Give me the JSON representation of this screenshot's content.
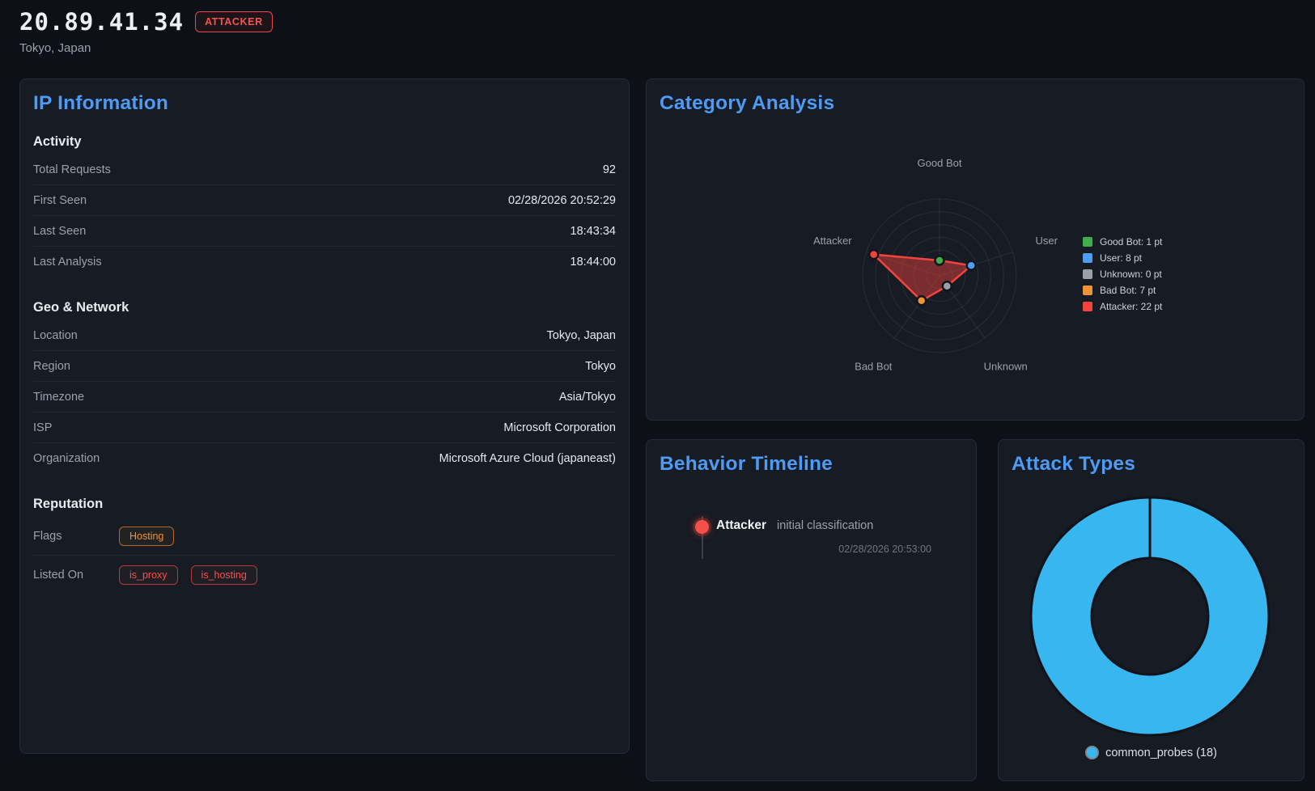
{
  "header": {
    "ip": "20.89.41.34",
    "badge": "ATTACKER",
    "location": "Tokyo, Japan"
  },
  "theme": {
    "accent_blue": "#4d9bf5",
    "attacker_red": "#f4443e",
    "panel_background": "#171b23"
  },
  "ip_information": {
    "title": "IP Information",
    "sections": [
      {
        "heading": "Activity",
        "rows": [
          {
            "label": "Total Requests",
            "value": "92"
          },
          {
            "label": "First Seen",
            "value": "02/28/2026 20:52:29"
          },
          {
            "label": "Last Seen",
            "value": "18:43:34"
          },
          {
            "label": "Last Analysis",
            "value": "18:44:00"
          }
        ]
      },
      {
        "heading": "Geo & Network",
        "rows": [
          {
            "label": "Location",
            "value": "Tokyo, Japan"
          },
          {
            "label": "Region",
            "value": "Tokyo"
          },
          {
            "label": "Timezone",
            "value": "Asia/Tokyo"
          },
          {
            "label": "ISP",
            "value": "Microsoft Corporation"
          },
          {
            "label": "Organization",
            "value": "Microsoft Azure Cloud (japaneast)"
          }
        ]
      },
      {
        "heading": "Reputation",
        "rows": [
          {
            "label": "Flags",
            "badges": [
              {
                "text": "Hosting",
                "style": "orange"
              }
            ]
          },
          {
            "label": "Listed On",
            "badges": [
              {
                "text": "is_proxy",
                "style": "red"
              },
              {
                "text": "is_hosting",
                "style": "red"
              }
            ]
          }
        ]
      }
    ]
  },
  "category_analysis": {
    "title": "Category Analysis"
  },
  "behavior_timeline": {
    "title": "Behavior Timeline",
    "events": [
      {
        "category": "Attacker",
        "description": "initial classification",
        "timestamp": "02/28/2026 20:53:00",
        "color": "#f4504a"
      }
    ]
  },
  "attack_types": {
    "title": "Attack Types"
  },
  "chart_data": [
    {
      "type": "radar",
      "title": "Category Analysis",
      "categories": [
        "Good Bot",
        "User",
        "Unknown",
        "Bad Bot",
        "Attacker"
      ],
      "values": [
        1,
        8,
        0,
        7,
        22
      ],
      "unit": "pt",
      "point_colors": [
        "#3fad4e",
        "#4e9df6",
        "#9aa0a6",
        "#ef9334",
        "#f4443e"
      ],
      "fill": "rgba(244,67,60,0.45)",
      "stroke": "#f4443e",
      "scale": {
        "min": -5,
        "max": 25,
        "rings": 6
      },
      "grid": "circular",
      "legend_position": "right",
      "legend": [
        "Good Bot: 1 pt",
        "User: 8 pt",
        "Unknown: 0 pt",
        "Bad Bot: 7 pt",
        "Attacker: 22 pt"
      ]
    },
    {
      "type": "doughnut",
      "title": "Attack Types",
      "categories": [
        "common_probes"
      ],
      "values": [
        18
      ],
      "colors": [
        "#38b6ef"
      ],
      "cutout_ratio": 0.49,
      "legend_position": "bottom",
      "legend": [
        "common_probes (18)"
      ]
    }
  ]
}
